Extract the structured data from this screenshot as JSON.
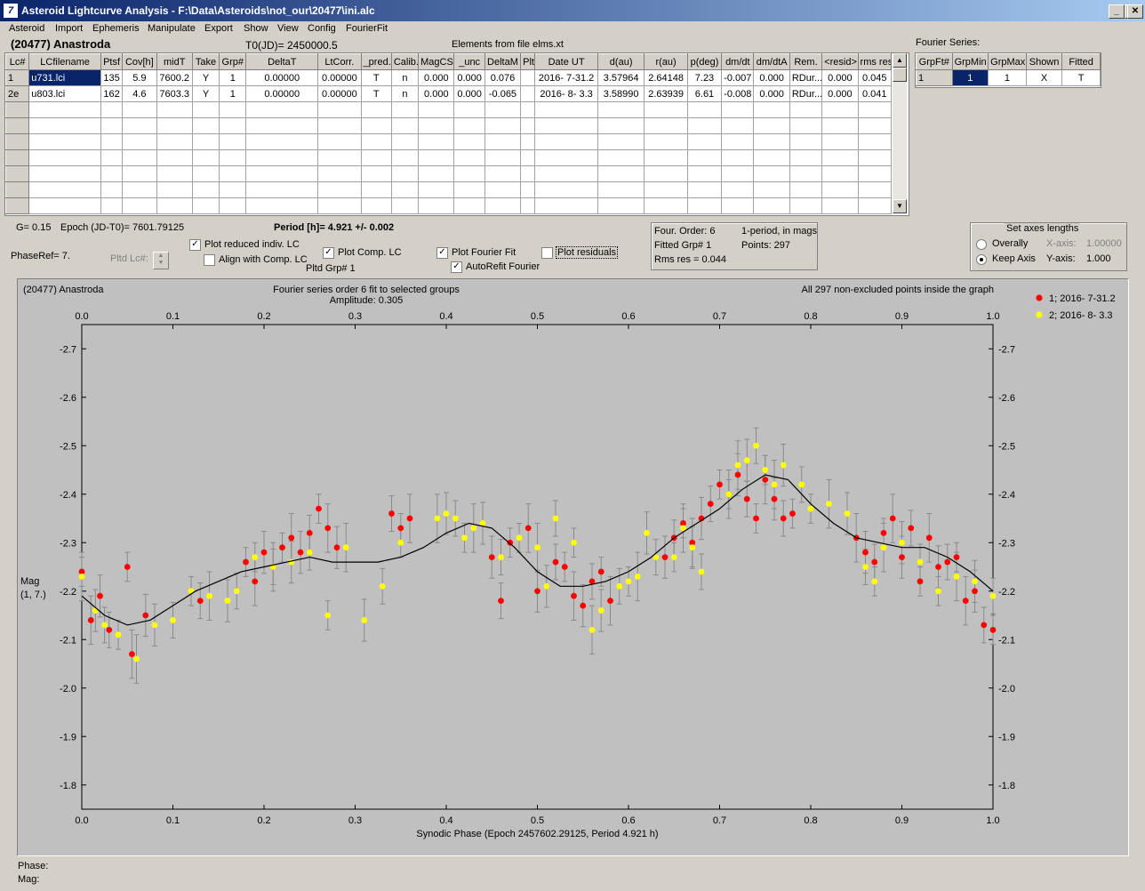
{
  "window": {
    "title": "Asteroid Lightcurve Analysis - F:\\Data\\Asteroids\\not_our\\20477\\ini.alc",
    "app_icon": "app-logo-icon"
  },
  "menu": [
    "Asteroid",
    "Import",
    "Ephemeris",
    "Manipulate",
    "Export",
    "Show",
    "View",
    "Config",
    "FourierFit"
  ],
  "header": {
    "asteroid": "(20477) Anastroda",
    "t0": "T0(JD)= 2450000.5",
    "elements": "Elements from file elms.xt"
  },
  "table": {
    "columns": [
      "Lc#",
      "LCfilename",
      "Ptsf",
      "Cov[h]",
      "midT",
      "Take",
      "Grp#",
      "DeltaT",
      "LtCorr.",
      "_pred.",
      "Calib.",
      "MagCS",
      "_unc",
      "DeltaM",
      "Plt",
      "Date UT",
      "d(au)",
      "r(au)",
      "p(deg)",
      "dm/dt",
      "dm/dtA",
      "Rem.",
      "<resid>",
      "rms res"
    ],
    "rows": [
      [
        "1",
        "u731.lci",
        "135",
        "5.9",
        "7600.2",
        "Y",
        "1",
        "0.00000",
        "0.00000",
        "T",
        "n",
        "0.000",
        "0.000",
        "0.076",
        "",
        "2016- 7-31.2",
        "3.57964",
        "2.64148",
        "7.23",
        "-0.007",
        "0.000",
        "RDur...",
        "0.000",
        "0.045"
      ],
      [
        "2e",
        "u803.lci",
        "162",
        "4.6",
        "7603.3",
        "Y",
        "1",
        "0.00000",
        "0.00000",
        "T",
        "n",
        "0.000",
        "0.000",
        "-0.065",
        "",
        "2016- 8- 3.3",
        "3.58990",
        "2.63939",
        "6.61",
        "-0.008",
        "0.000",
        "RDur...",
        "0.000",
        "0.041"
      ]
    ],
    "empty_rows": 7
  },
  "fourier_series": {
    "title": "Fourier Series:",
    "columns": [
      "GrpFt#",
      "GrpMin",
      "GrpMax",
      "Shown",
      "Fitted"
    ],
    "row": [
      "1",
      "1",
      "1",
      "X",
      "T"
    ]
  },
  "info": {
    "g": "G= 0.15",
    "epoch": "Epoch (JD-T0)= 7601.79125",
    "period": "Period [h]= 4.921 +/- 0.002",
    "phaseref": "PhaseRef= 7.",
    "pltd_lc": "Pltd Lc#:",
    "pltd_grp": "Pltd Grp#  1"
  },
  "checkboxes": {
    "plot_reduced": {
      "label": "Plot reduced indiv. LC",
      "checked": true
    },
    "align_comp": {
      "label": "Align with Comp. LC",
      "checked": false
    },
    "plot_comp": {
      "label": "Plot Comp. LC",
      "checked": true
    },
    "plot_fourier": {
      "label": "Plot Fourier Fit",
      "checked": true
    },
    "autorefit": {
      "label": "AutoRefit Fourier",
      "checked": true
    },
    "plot_residuals": {
      "label": "Plot residuals",
      "checked": false
    }
  },
  "fit_box": {
    "order": "Four. Order:  6",
    "period_mode": "1-period, in mags",
    "fitted_grp": "Fitted Grp# 1",
    "points": "Points: 297",
    "rms": "Rms res     = 0.044"
  },
  "axes_box": {
    "title": "Set axes lengths",
    "overall": "Overally",
    "keep": "Keep Axis",
    "x_label": "X-axis:",
    "x_val": "1.00000",
    "y_label": "Y-axis:",
    "y_val": "1.000",
    "selected": "keep"
  },
  "chart_data": {
    "type": "scatter",
    "title_left": "(20477) Anastroda",
    "title": "Fourier series order 6 fit to selected groups",
    "subtitle": "Amplitude: 0.305",
    "title_right": "All 297 non-excluded points inside the graph",
    "xlabel": "Synodic Phase (Epoch 2457602.29125, Period 4.921 h)",
    "ylabel": "Mag",
    "ylabel2": "(1, 7.)",
    "xlim": [
      0,
      1
    ],
    "ylim": [
      -2.75,
      -1.75
    ],
    "y_inverted": true,
    "x_ticks": [
      "0.0",
      "0.1",
      "0.2",
      "0.3",
      "0.4",
      "0.5",
      "0.6",
      "0.7",
      "0.8",
      "0.9",
      "1.0"
    ],
    "y_ticks": [
      "-2.7",
      "-2.6",
      "-2.5",
      "-2.4",
      "-2.3",
      "-2.2",
      "-2.1",
      "-2.0",
      "-1.9",
      "-1.8"
    ],
    "grid": false,
    "legend_placement": "top-right",
    "fourier_curve": {
      "phase": [
        0.0,
        0.025,
        0.05,
        0.075,
        0.1,
        0.125,
        0.15,
        0.175,
        0.2,
        0.225,
        0.25,
        0.275,
        0.3,
        0.325,
        0.35,
        0.375,
        0.4,
        0.425,
        0.45,
        0.475,
        0.5,
        0.525,
        0.55,
        0.575,
        0.6,
        0.625,
        0.65,
        0.675,
        0.7,
        0.725,
        0.75,
        0.775,
        0.8,
        0.825,
        0.85,
        0.875,
        0.9,
        0.925,
        0.95,
        0.975,
        1.0
      ],
      "mag": [
        -2.19,
        -2.15,
        -2.13,
        -2.14,
        -2.17,
        -2.2,
        -2.22,
        -2.24,
        -2.25,
        -2.26,
        -2.27,
        -2.26,
        -2.26,
        -2.26,
        -2.27,
        -2.29,
        -2.32,
        -2.34,
        -2.33,
        -2.29,
        -2.24,
        -2.21,
        -2.21,
        -2.22,
        -2.24,
        -2.27,
        -2.31,
        -2.34,
        -2.37,
        -2.41,
        -2.44,
        -2.43,
        -2.38,
        -2.34,
        -2.31,
        -2.3,
        -2.29,
        -2.29,
        -2.27,
        -2.24,
        -2.2
      ]
    },
    "series": [
      {
        "name": "1; 2016- 7-31.2",
        "color": "#ff0000",
        "x": [
          0.0,
          0.01,
          0.02,
          0.03,
          0.05,
          0.055,
          0.07,
          0.13,
          0.18,
          0.19,
          0.2,
          0.21,
          0.22,
          0.23,
          0.24,
          0.25,
          0.26,
          0.27,
          0.28,
          0.34,
          0.35,
          0.36,
          0.45,
          0.46,
          0.47,
          0.49,
          0.5,
          0.52,
          0.53,
          0.54,
          0.55,
          0.56,
          0.57,
          0.58,
          0.64,
          0.65,
          0.66,
          0.67,
          0.68,
          0.69,
          0.7,
          0.71,
          0.72,
          0.73,
          0.74,
          0.75,
          0.76,
          0.77,
          0.78,
          0.85,
          0.86,
          0.87,
          0.88,
          0.89,
          0.9,
          0.91,
          0.92,
          0.93,
          0.94,
          0.95,
          0.96,
          0.97,
          0.98,
          0.99,
          1.0
        ],
        "y": [
          -2.24,
          -2.14,
          -2.19,
          -2.12,
          -2.25,
          -2.07,
          -2.15,
          -2.18,
          -2.26,
          -2.22,
          -2.28,
          -2.25,
          -2.29,
          -2.31,
          -2.28,
          -2.32,
          -2.37,
          -2.33,
          -2.29,
          -2.36,
          -2.33,
          -2.35,
          -2.27,
          -2.18,
          -2.3,
          -2.33,
          -2.2,
          -2.26,
          -2.25,
          -2.19,
          -2.17,
          -2.22,
          -2.24,
          -2.18,
          -2.27,
          -2.31,
          -2.34,
          -2.3,
          -2.35,
          -2.38,
          -2.42,
          -2.4,
          -2.44,
          -2.39,
          -2.35,
          -2.43,
          -2.39,
          -2.35,
          -2.36,
          -2.31,
          -2.28,
          -2.26,
          -2.32,
          -2.35,
          -2.27,
          -2.33,
          -2.22,
          -2.31,
          -2.25,
          -2.26,
          -2.27,
          -2.18,
          -2.2,
          -2.13,
          -2.12
        ]
      },
      {
        "name": "2; 2016- 8- 3.3",
        "color": "#ffff00",
        "x": [
          0.0,
          0.015,
          0.025,
          0.04,
          0.06,
          0.08,
          0.1,
          0.12,
          0.14,
          0.16,
          0.17,
          0.19,
          0.21,
          0.23,
          0.25,
          0.27,
          0.29,
          0.31,
          0.33,
          0.35,
          0.39,
          0.4,
          0.41,
          0.42,
          0.43,
          0.44,
          0.46,
          0.48,
          0.5,
          0.51,
          0.52,
          0.54,
          0.56,
          0.57,
          0.59,
          0.6,
          0.61,
          0.62,
          0.63,
          0.65,
          0.66,
          0.67,
          0.68,
          0.71,
          0.72,
          0.73,
          0.74,
          0.75,
          0.76,
          0.77,
          0.79,
          0.8,
          0.82,
          0.84,
          0.86,
          0.87,
          0.88,
          0.9,
          0.92,
          0.94,
          0.96,
          0.98,
          1.0
        ],
        "y": [
          -2.23,
          -2.16,
          -2.13,
          -2.11,
          -2.06,
          -2.13,
          -2.14,
          -2.2,
          -2.19,
          -2.18,
          -2.2,
          -2.27,
          -2.25,
          -2.26,
          -2.28,
          -2.15,
          -2.29,
          -2.14,
          -2.21,
          -2.3,
          -2.35,
          -2.36,
          -2.35,
          -2.31,
          -2.33,
          -2.34,
          -2.27,
          -2.31,
          -2.29,
          -2.21,
          -2.35,
          -2.3,
          -2.12,
          -2.16,
          -2.21,
          -2.22,
          -2.23,
          -2.32,
          -2.27,
          -2.27,
          -2.33,
          -2.29,
          -2.24,
          -2.4,
          -2.46,
          -2.47,
          -2.5,
          -2.45,
          -2.42,
          -2.46,
          -2.42,
          -2.37,
          -2.38,
          -2.36,
          -2.25,
          -2.22,
          -2.29,
          -2.3,
          -2.26,
          -2.2,
          -2.23,
          -2.22,
          -2.19
        ]
      }
    ]
  },
  "status": {
    "phase": "Phase:",
    "mag": "Mag:"
  }
}
